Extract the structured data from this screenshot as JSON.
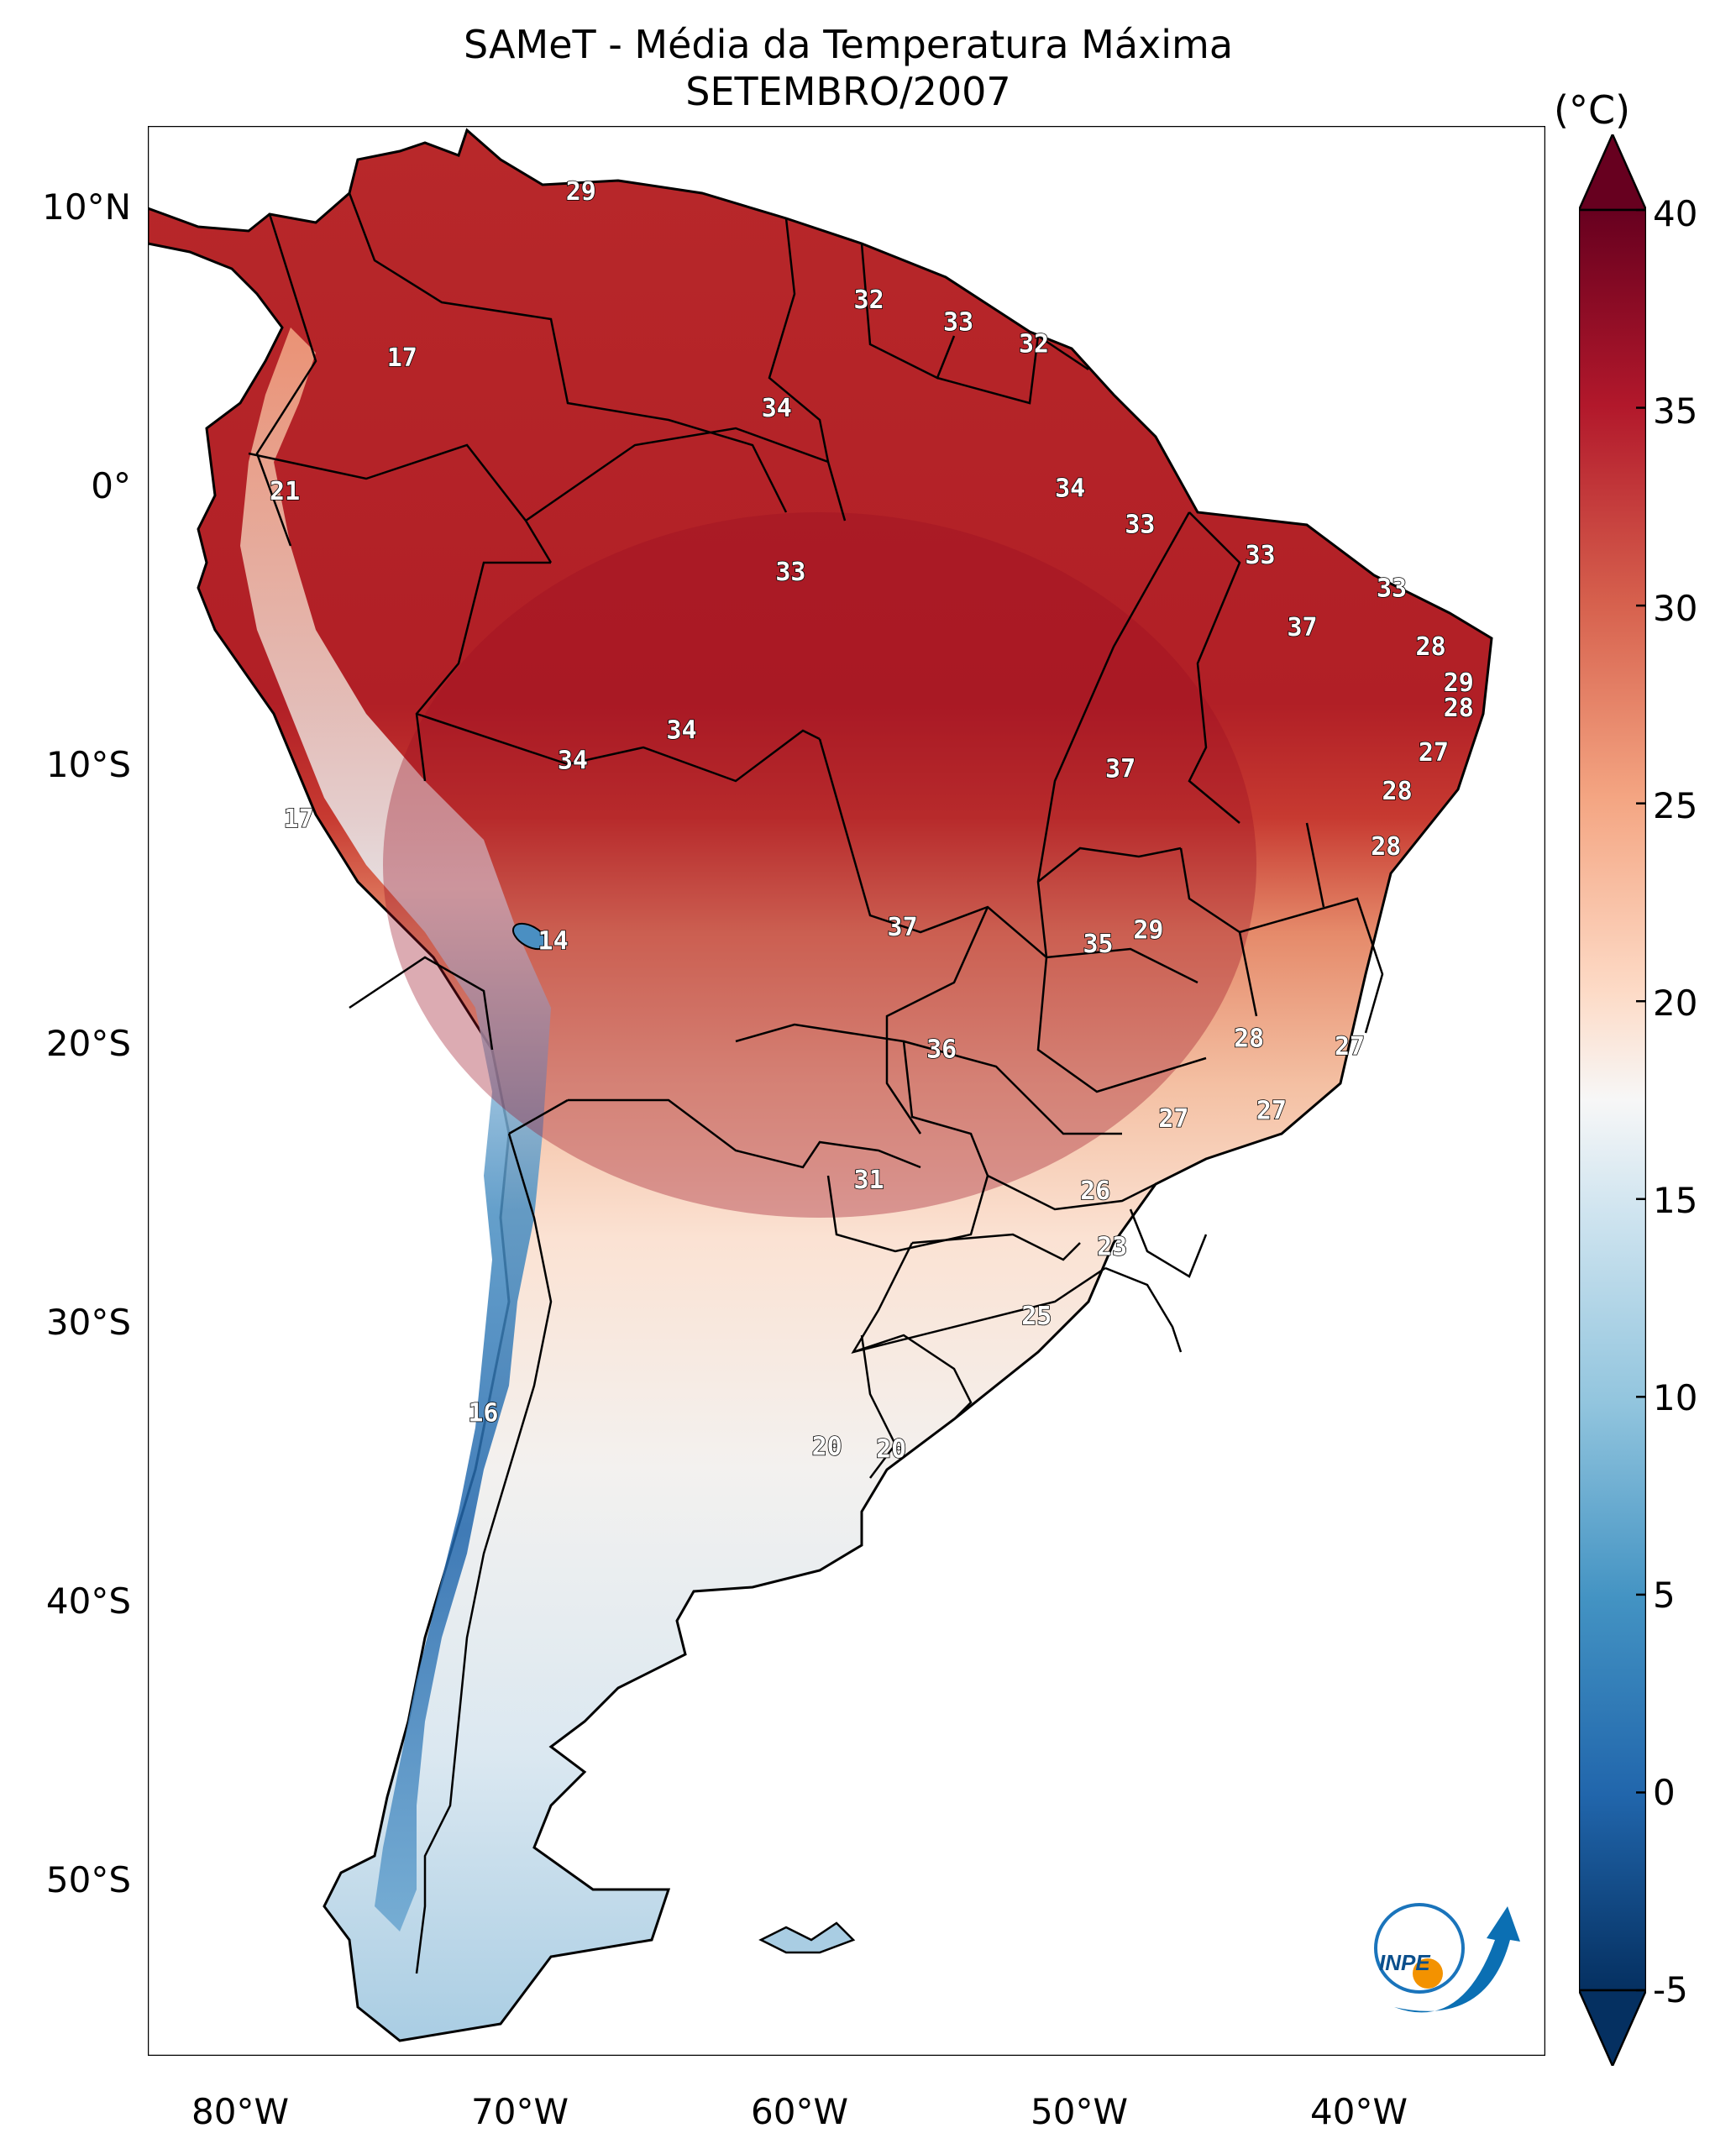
{
  "header": {
    "title": "SAMeT - Média da Temperatura Máxima",
    "subtitle": "SETEMBRO/2007",
    "unit": "(°C)"
  },
  "axes": {
    "lat_labels": [
      "10°N",
      "0°",
      "10°S",
      "20°S",
      "30°S",
      "40°S",
      "50°S"
    ],
    "lat_values": [
      10,
      0,
      -10,
      -20,
      -30,
      -40,
      -50
    ],
    "lon_labels": [
      "80°W",
      "70°W",
      "60°W",
      "50°W",
      "40°W"
    ],
    "lon_values": [
      -80,
      -70,
      -60,
      -50,
      -40
    ],
    "extent": {
      "lon": [
        -83,
        -33
      ],
      "lat": [
        -56.5,
        13
      ]
    }
  },
  "colorbar": {
    "ticks": [
      "40",
      "35",
      "30",
      "25",
      "20",
      "15",
      "10",
      "5",
      "0",
      "-5"
    ],
    "tick_values": [
      40,
      35,
      30,
      25,
      20,
      15,
      10,
      5,
      0,
      -5
    ],
    "range": [
      -5,
      40
    ],
    "colormap": "RdBu_r",
    "extend": "both"
  },
  "values": [
    {
      "label": "29",
      "lon": -67.5,
      "lat": 10.6
    },
    {
      "label": "32",
      "lon": -57.2,
      "lat": 6.7
    },
    {
      "label": "33",
      "lon": -54.0,
      "lat": 5.9
    },
    {
      "label": "32",
      "lon": -51.3,
      "lat": 5.1
    },
    {
      "label": "17",
      "lon": -73.9,
      "lat": 4.6
    },
    {
      "label": "34",
      "lon": -60.5,
      "lat": 2.8
    },
    {
      "label": "21",
      "lon": -78.1,
      "lat": -0.2
    },
    {
      "label": "34",
      "lon": -50.0,
      "lat": -0.1
    },
    {
      "label": "33",
      "lon": -47.5,
      "lat": -1.4
    },
    {
      "label": "33",
      "lon": -43.2,
      "lat": -2.5
    },
    {
      "label": "33",
      "lon": -60.0,
      "lat": -3.1
    },
    {
      "label": "33",
      "lon": -38.5,
      "lat": -3.7
    },
    {
      "label": "37",
      "lon": -41.7,
      "lat": -5.1
    },
    {
      "label": "28",
      "lon": -37.1,
      "lat": -5.8
    },
    {
      "label": "29",
      "lon": -36.1,
      "lat": -7.1
    },
    {
      "label": "28",
      "lon": -36.1,
      "lat": -8.0
    },
    {
      "label": "34",
      "lon": -63.9,
      "lat": -8.8
    },
    {
      "label": "34",
      "lon": -67.8,
      "lat": -9.9
    },
    {
      "label": "27",
      "lon": -37.0,
      "lat": -9.6
    },
    {
      "label": "37",
      "lon": -48.2,
      "lat": -10.2
    },
    {
      "label": "28",
      "lon": -38.3,
      "lat": -11.0
    },
    {
      "label": "17",
      "lon": -77.6,
      "lat": -12.0
    },
    {
      "label": "28",
      "lon": -38.7,
      "lat": -13.0
    },
    {
      "label": "37",
      "lon": -56.0,
      "lat": -15.9
    },
    {
      "label": "29",
      "lon": -47.2,
      "lat": -16.0
    },
    {
      "label": "14",
      "lon": -68.5,
      "lat": -16.4
    },
    {
      "label": "35",
      "lon": -49.0,
      "lat": -16.5
    },
    {
      "label": "28",
      "lon": -43.6,
      "lat": -19.9
    },
    {
      "label": "27",
      "lon": -40.0,
      "lat": -20.2
    },
    {
      "label": "36",
      "lon": -54.6,
      "lat": -20.3
    },
    {
      "label": "27",
      "lon": -46.3,
      "lat": -22.8
    },
    {
      "label": "27",
      "lon": -42.8,
      "lat": -22.5
    },
    {
      "label": "31",
      "lon": -57.2,
      "lat": -25.0
    },
    {
      "label": "26",
      "lon": -49.1,
      "lat": -25.4
    },
    {
      "label": "23",
      "lon": -48.5,
      "lat": -27.4
    },
    {
      "label": "25",
      "lon": -51.2,
      "lat": -29.9
    },
    {
      "label": "16",
      "lon": -71.0,
      "lat": -33.4
    },
    {
      "label": "20",
      "lon": -58.7,
      "lat": -34.6
    },
    {
      "label": "20",
      "lon": -56.4,
      "lat": -34.7
    }
  ],
  "logo": {
    "text": "INPE"
  }
}
